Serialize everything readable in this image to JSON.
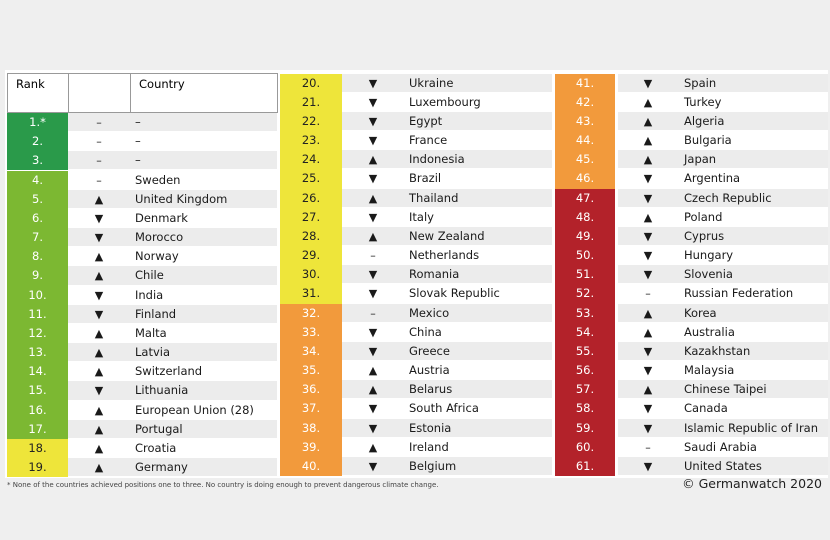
{
  "header": {
    "rank": "Rank",
    "country": "Country"
  },
  "columns": [
    {
      "rows": [
        {
          "rank": "1.*",
          "trend": "–",
          "country": "–",
          "color": "#2a9a4a"
        },
        {
          "rank": "2.",
          "trend": "–",
          "country": "–",
          "color": "#2a9a4a"
        },
        {
          "rank": "3.",
          "trend": "–",
          "country": "–",
          "color": "#2a9a4a"
        },
        {
          "rank": "4.",
          "trend": "–",
          "country": "Sweden",
          "color": "#7cb832"
        },
        {
          "rank": "5.",
          "trend": "▲",
          "country": "United Kingdom",
          "color": "#7cb832"
        },
        {
          "rank": "6.",
          "trend": "▼",
          "country": "Denmark",
          "color": "#7cb832"
        },
        {
          "rank": "7.",
          "trend": "▼",
          "country": "Morocco",
          "color": "#7cb832"
        },
        {
          "rank": "8.",
          "trend": "▲",
          "country": "Norway",
          "color": "#7cb832"
        },
        {
          "rank": "9.",
          "trend": "▲",
          "country": "Chile",
          "color": "#7cb832"
        },
        {
          "rank": "10.",
          "trend": "▼",
          "country": "India",
          "color": "#7cb832"
        },
        {
          "rank": "11.",
          "trend": "▼",
          "country": "Finland",
          "color": "#7cb832"
        },
        {
          "rank": "12.",
          "trend": "▲",
          "country": "Malta",
          "color": "#7cb832"
        },
        {
          "rank": "13.",
          "trend": "▲",
          "country": "Latvia",
          "color": "#7cb832"
        },
        {
          "rank": "14.",
          "trend": "▲",
          "country": "Switzerland",
          "color": "#7cb832"
        },
        {
          "rank": "15.",
          "trend": "▼",
          "country": "Lithuania",
          "color": "#7cb832"
        },
        {
          "rank": "16.",
          "trend": "▲",
          "country": "European Union (28)",
          "color": "#7cb832"
        },
        {
          "rank": "17.",
          "trend": "▲",
          "country": "Portugal",
          "color": "#7cb832"
        },
        {
          "rank": "18.",
          "trend": "▲",
          "country": "Croatia",
          "color": "#eee53a"
        },
        {
          "rank": "19.",
          "trend": "▲",
          "country": "Germany",
          "color": "#eee53a"
        }
      ]
    },
    {
      "rows": [
        {
          "rank": "20.",
          "trend": "▼",
          "country": "Ukraine",
          "color": "#eee53a"
        },
        {
          "rank": "21.",
          "trend": "▼",
          "country": "Luxembourg",
          "color": "#eee53a"
        },
        {
          "rank": "22.",
          "trend": "▼",
          "country": "Egypt",
          "color": "#eee53a"
        },
        {
          "rank": "23.",
          "trend": "▼",
          "country": "France",
          "color": "#eee53a"
        },
        {
          "rank": "24.",
          "trend": "▲",
          "country": "Indonesia",
          "color": "#eee53a"
        },
        {
          "rank": "25.",
          "trend": "▼",
          "country": "Brazil",
          "color": "#eee53a"
        },
        {
          "rank": "26.",
          "trend": "▲",
          "country": "Thailand",
          "color": "#eee53a"
        },
        {
          "rank": "27.",
          "trend": "▼",
          "country": "Italy",
          "color": "#eee53a"
        },
        {
          "rank": "28.",
          "trend": "▲",
          "country": "New Zealand",
          "color": "#eee53a"
        },
        {
          "rank": "29.",
          "trend": "–",
          "country": "Netherlands",
          "color": "#eee53a"
        },
        {
          "rank": "30.",
          "trend": "▼",
          "country": "Romania",
          "color": "#eee53a"
        },
        {
          "rank": "31.",
          "trend": "▼",
          "country": "Slovak Republic",
          "color": "#eee53a"
        },
        {
          "rank": "32.",
          "trend": "–",
          "country": "Mexico",
          "color": "#f29a3c"
        },
        {
          "rank": "33.",
          "trend": "▼",
          "country": "China",
          "color": "#f29a3c"
        },
        {
          "rank": "34.",
          "trend": "▼",
          "country": "Greece",
          "color": "#f29a3c"
        },
        {
          "rank": "35.",
          "trend": "▲",
          "country": "Austria",
          "color": "#f29a3c"
        },
        {
          "rank": "36.",
          "trend": "▲",
          "country": "Belarus",
          "color": "#f29a3c"
        },
        {
          "rank": "37.",
          "trend": "▼",
          "country": "South Africa",
          "color": "#f29a3c"
        },
        {
          "rank": "38.",
          "trend": "▼",
          "country": "Estonia",
          "color": "#f29a3c"
        },
        {
          "rank": "39.",
          "trend": "▲",
          "country": "Ireland",
          "color": "#f29a3c"
        },
        {
          "rank": "40.",
          "trend": "▼",
          "country": "Belgium",
          "color": "#f29a3c"
        }
      ]
    },
    {
      "rows": [
        {
          "rank": "41.",
          "trend": "▼",
          "country": "Spain",
          "color": "#f29a3c"
        },
        {
          "rank": "42.",
          "trend": "▲",
          "country": "Turkey",
          "color": "#f29a3c"
        },
        {
          "rank": "43.",
          "trend": "▲",
          "country": "Algeria",
          "color": "#f29a3c"
        },
        {
          "rank": "44.",
          "trend": "▲",
          "country": "Bulgaria",
          "color": "#f29a3c"
        },
        {
          "rank": "45.",
          "trend": "▲",
          "country": "Japan",
          "color": "#f29a3c"
        },
        {
          "rank": "46.",
          "trend": "▼",
          "country": "Argentina",
          "color": "#f29a3c"
        },
        {
          "rank": "47.",
          "trend": "▼",
          "country": "Czech Republic",
          "color": "#b3222a"
        },
        {
          "rank": "48.",
          "trend": "▲",
          "country": "Poland",
          "color": "#b3222a"
        },
        {
          "rank": "49.",
          "trend": "▼",
          "country": "Cyprus",
          "color": "#b3222a"
        },
        {
          "rank": "50.",
          "trend": "▼",
          "country": "Hungary",
          "color": "#b3222a"
        },
        {
          "rank": "51.",
          "trend": "▼",
          "country": "Slovenia",
          "color": "#b3222a"
        },
        {
          "rank": "52.",
          "trend": "–",
          "country": "Russian Federation",
          "color": "#b3222a"
        },
        {
          "rank": "53.",
          "trend": "▲",
          "country": "Korea",
          "color": "#b3222a"
        },
        {
          "rank": "54.",
          "trend": "▲",
          "country": "Australia",
          "color": "#b3222a"
        },
        {
          "rank": "55.",
          "trend": "▼",
          "country": "Kazakhstan",
          "color": "#b3222a"
        },
        {
          "rank": "56.",
          "trend": "▼",
          "country": "Malaysia",
          "color": "#b3222a"
        },
        {
          "rank": "57.",
          "trend": "▲",
          "country": "Chinese Taipei",
          "color": "#b3222a"
        },
        {
          "rank": "58.",
          "trend": "▼",
          "country": "Canada",
          "color": "#b3222a"
        },
        {
          "rank": "59.",
          "trend": "▼",
          "country": "Islamic Republic of Iran",
          "color": "#b3222a"
        },
        {
          "rank": "60.",
          "trend": "–",
          "country": "Saudi Arabia",
          "color": "#b3222a"
        },
        {
          "rank": "61.",
          "trend": "▼",
          "country": "United States",
          "color": "#b3222a"
        }
      ]
    }
  ],
  "footnote": "* None of the countries achieved positions one to three. No country is doing enough to prevent dangerous climate change.",
  "credit": "© Germanwatch 2020"
}
